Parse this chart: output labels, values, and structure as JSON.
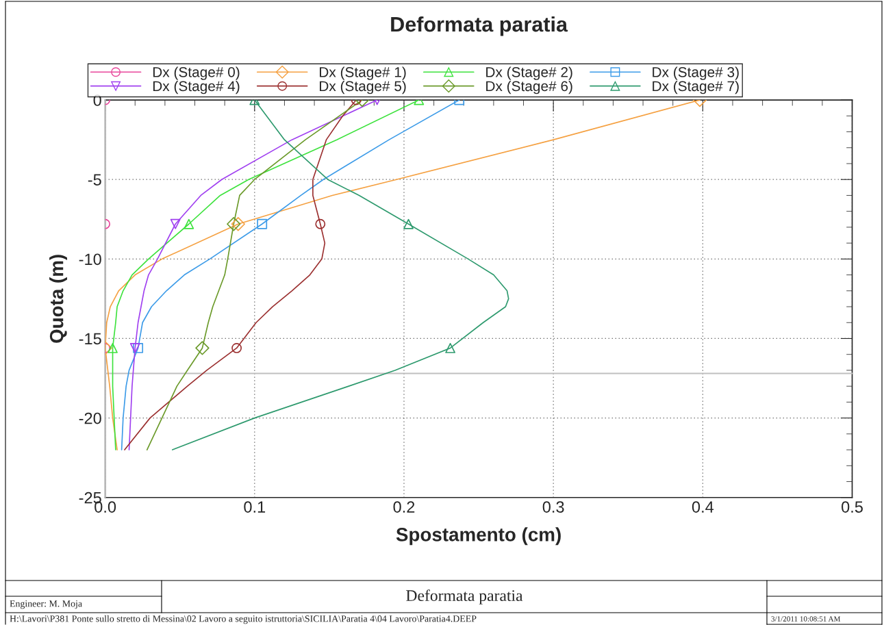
{
  "chart_data": {
    "type": "line",
    "title": "Deformata paratia",
    "xlabel": "Spostamento (cm)",
    "ylabel": "Quota (m)",
    "xlim": [
      0,
      0.5
    ],
    "xticks": [
      {
        "value": 0,
        "label": "0.0"
      },
      0.1,
      0.2,
      0.3,
      0.4,
      0.5
    ],
    "ylim": [
      -25,
      0
    ],
    "yticks": [
      -25,
      -20,
      -15,
      -10,
      -5,
      0
    ],
    "grid": true,
    "legend": "top",
    "series": [
      {
        "type": "scatter",
        "name": "Dx (Stage# 0)",
        "color": "#e8479b",
        "marker": "circle",
        "x": [
          0,
          0,
          0
        ],
        "values": [
          0,
          -7.8,
          -15.6
        ]
      },
      {
        "name": "Dx (Stage# 1)",
        "color": "#f5a142",
        "x": [
          0.398,
          0.3,
          0.195,
          0.152,
          0.089,
          0.038,
          0.02,
          0.009,
          0.0034,
          0.001,
          0.0,
          0.003,
          0.005,
          0.008
        ],
        "values": [
          0,
          -2.5,
          -5,
          -6,
          -7.8,
          -10,
          -11,
          -12,
          -13,
          -14,
          -15.6,
          -18,
          -20,
          -22
        ]
      },
      {
        "name": "Dx (Stage# 2)",
        "color": "#3de23d",
        "x": [
          0.21,
          0.155,
          0.096,
          0.077,
          0.056,
          0.029,
          0.018,
          0.012,
          0.008,
          0.007,
          0.005,
          0.005,
          0.006,
          0.007
        ],
        "values": [
          0,
          -2.5,
          -5,
          -6,
          -7.8,
          -10,
          -11,
          -12,
          -13,
          -14,
          -15.6,
          -18,
          -20,
          -22
        ]
      },
      {
        "name": "Dx (Stage# 3)",
        "color": "#3c9be8",
        "x": [
          0.237,
          0.19,
          0.146,
          0.131,
          0.105,
          0.07,
          0.053,
          0.041,
          0.031,
          0.025,
          0.022,
          0.016,
          0.014,
          0.012,
          0.011
        ],
        "values": [
          0,
          -2.5,
          -5,
          -6,
          -7.8,
          -10,
          -11,
          -12,
          -13,
          -14,
          -15.6,
          -17,
          -18,
          -20,
          -22
        ]
      },
      {
        "name": "Dx (Stage# 4)",
        "color": "#a040f0",
        "x": [
          0.182,
          0.125,
          0.078,
          0.064,
          0.047,
          0.035,
          0.029,
          0.026,
          0.024,
          0.022,
          0.02,
          0.018,
          0.017,
          0.016
        ],
        "values": [
          0,
          -2.5,
          -5,
          -6,
          -7.8,
          -10,
          -11,
          -12,
          -13,
          -14,
          -15.6,
          -18,
          -20,
          -22
        ]
      },
      {
        "name": "Dx (Stage# 5)",
        "color": "#9b3030",
        "x": [
          0.168,
          0.159,
          0.148,
          0.139,
          0.139,
          0.144,
          0.147,
          0.145,
          0.137,
          0.125,
          0.112,
          0.101,
          0.088,
          0.068,
          0.055,
          0.03,
          0.013
        ],
        "values": [
          0,
          -1,
          -2.5,
          -5,
          -6,
          -7.8,
          -9,
          -10,
          -11,
          -12,
          -13,
          -14,
          -15.6,
          -17,
          -18,
          -20,
          -22
        ]
      },
      {
        "name": "Dx (Stage# 6)",
        "color": "#6b9a2a",
        "x": [
          0.172,
          0.134,
          0.1,
          0.09,
          0.086,
          0.082,
          0.08,
          0.076,
          0.072,
          0.069,
          0.065,
          0.055,
          0.048,
          0.038,
          0.028
        ],
        "values": [
          0,
          -2.5,
          -5,
          -6,
          -7.8,
          -10,
          -11,
          -12,
          -13,
          -14,
          -15.6,
          -17,
          -18,
          -20,
          -22
        ]
      },
      {
        "name": "Dx (Stage# 7)",
        "color": "#2e9a6e",
        "x": [
          0.1,
          0.12,
          0.149,
          0.17,
          0.203,
          0.243,
          0.26,
          0.269,
          0.27,
          0.268,
          0.253,
          0.231,
          0.194,
          0.163,
          0.1,
          0.045
        ],
        "values": [
          0,
          -2.5,
          -5,
          -6,
          -7.8,
          -10,
          -11,
          -12,
          -12.5,
          -13,
          -14,
          -15.6,
          -17,
          -18,
          -20,
          -22
        ]
      },
      {
        "type": "scatter",
        "color": "#f5a142",
        "marker": "diamond",
        "x": [
          0.398,
          0.089,
          0.0
        ],
        "values": [
          0,
          -7.8,
          -15.6
        ]
      },
      {
        "type": "scatter",
        "color": "#3de23d",
        "marker": "triangle",
        "x": [
          0.21,
          0.056,
          0.005
        ],
        "values": [
          0,
          -7.8,
          -15.6
        ]
      },
      {
        "type": "scatter",
        "color": "#3c9be8",
        "marker": "square",
        "x": [
          0.237,
          0.105,
          0.022
        ],
        "values": [
          0,
          -7.8,
          -15.6
        ]
      },
      {
        "type": "scatter",
        "color": "#a040f0",
        "marker": "triangle_down",
        "x": [
          0.182,
          0.047,
          0.02
        ],
        "values": [
          0,
          -7.8,
          -15.6
        ]
      },
      {
        "type": "scatter",
        "color": "#9b3030",
        "marker": "circle",
        "x": [
          0.168,
          0.144,
          0.088
        ],
        "values": [
          0,
          -7.8,
          -15.6
        ]
      },
      {
        "type": "scatter",
        "color": "#6b9a2a",
        "marker": "diamond",
        "x": [
          0.172,
          0.086,
          0.065
        ],
        "values": [
          0,
          -7.8,
          -15.6
        ]
      },
      {
        "type": "scatter",
        "color": "#2e9a6e",
        "marker": "triangle",
        "x": [
          0.1,
          0.203,
          0.231
        ],
        "values": [
          0,
          -7.8,
          -15.6
        ]
      }
    ],
    "ref_lines": [
      {
        "axis": "x",
        "value": 0,
        "color": "#c0c0c0"
      },
      {
        "axis": "y",
        "value": -17.2,
        "color": "#c0c0c0"
      }
    ],
    "annotations": [
      "Engineer: M. Moja",
      "Deformata paratia",
      "H:\\Lavori\\P381 Ponte sullo stretto di Messina\\02 Lavoro a seguito istruttoria\\SICILIA\\Paratia 4\\04 Lavoro\\Paratia4.DEEP",
      "3/1/2011 10:08:51 AM"
    ]
  }
}
